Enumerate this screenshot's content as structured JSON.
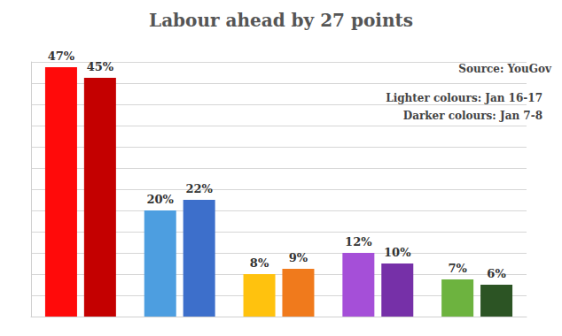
{
  "chart_data": {
    "type": "bar",
    "title": "Labour ahead by 27 points",
    "annotations": [
      "Source: YouGov"
    ],
    "categories": [
      null,
      null,
      null,
      null,
      null
    ],
    "series": [
      {
        "name": "Lighter colours: Jan 16-17",
        "colors": [
          "#ff0a0a",
          "#4d9ee0",
          "#ffc20e",
          "#a54fd8",
          "#6db33f"
        ],
        "values": [
          47,
          20,
          8,
          12,
          7
        ],
        "value_labels": [
          "47%",
          "20%",
          "8%",
          "12%",
          "7%"
        ]
      },
      {
        "name": "Darker colours: Jan 7-8",
        "colors": [
          "#c40000",
          "#3d6fcb",
          "#f07a1c",
          "#7630a8",
          "#2c5424"
        ],
        "values": [
          45,
          22,
          9,
          10,
          6
        ],
        "value_labels": [
          "45%",
          "22%",
          "9%",
          "10%",
          "6%"
        ]
      }
    ],
    "ylim": [
      0,
      48
    ],
    "yticks": [
      0,
      4,
      8,
      12,
      16,
      20,
      24,
      28,
      32,
      36,
      40,
      44,
      48
    ],
    "grid": true,
    "tick_labels": false,
    "data_labels": true,
    "legend": "upper right"
  }
}
